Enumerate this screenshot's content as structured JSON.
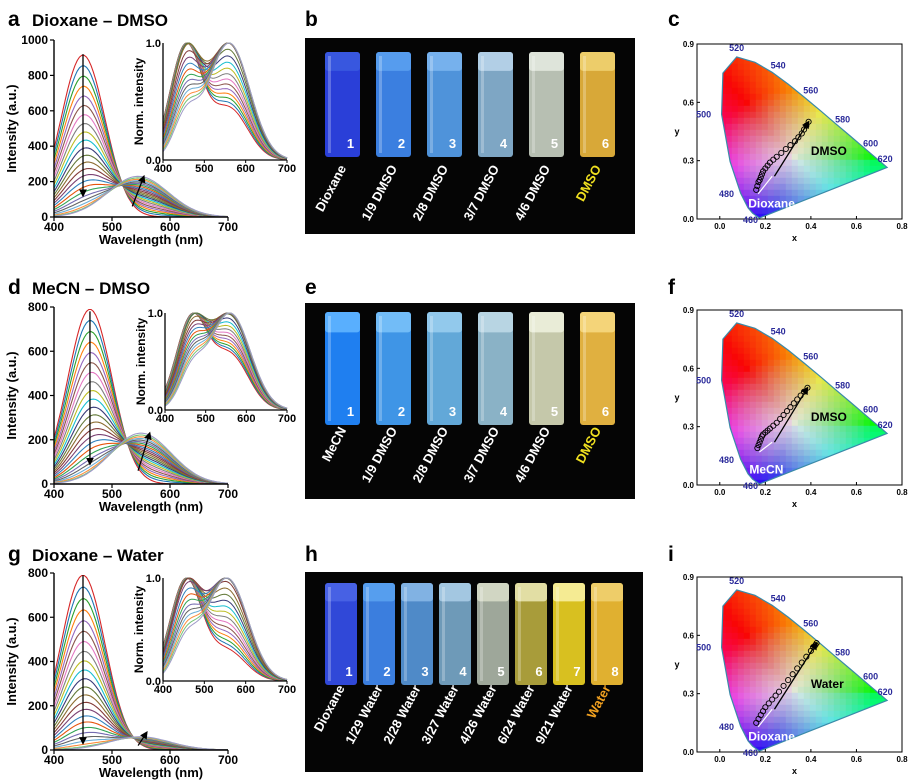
{
  "colors": {
    "vial_bg": "#050505",
    "label_white": "#ffffff",
    "label_dmso": "#f0e020",
    "label_water": "#f0a020",
    "locus_outline": "#3a8aa8",
    "wavelength_label": "#2a2a9a",
    "path_arrow": "#000000",
    "start_arrow": "#ffffff"
  },
  "chart_data": [
    {
      "id": "a",
      "type": "line",
      "panel_label": "a",
      "title": "Dioxane – DMSO",
      "xlabel": "Wavelength (nm)",
      "ylabel": "Intensity (a.u.)",
      "xlim": [
        400,
        700
      ],
      "ylim": [
        0,
        1000
      ],
      "xticks": [
        400,
        500,
        600,
        700
      ],
      "yticks": [
        0,
        200,
        400,
        600,
        800,
        1000
      ],
      "start": {
        "peak_x": 450,
        "peak_y": 915
      },
      "end": {
        "peak_x": 545,
        "peak_y": 230
      },
      "n_curves": 24,
      "arrow_down": {
        "x": 450,
        "from": 920,
        "to": 120
      },
      "arrow_up": {
        "from_x": 535,
        "from_y": 60,
        "to_x": 555,
        "to_y": 230
      },
      "inset": {
        "xlabel": "",
        "ylabel": "Norm. intensity",
        "xlim": [
          400,
          700
        ],
        "ylim": [
          0,
          1
        ],
        "xticks": [
          400,
          500,
          600,
          700
        ],
        "yticks": [
          "0.0",
          "1.0"
        ],
        "start_peak": 455,
        "end_peak": 560,
        "shoulder": 0.45
      }
    },
    {
      "id": "d",
      "type": "line",
      "panel_label": "d",
      "title": "MeCN – DMSO",
      "xlabel": "Wavelength (nm)",
      "ylabel": "Intensity (a.u.)",
      "xlim": [
        400,
        700
      ],
      "ylim": [
        0,
        800
      ],
      "xticks": [
        400,
        500,
        600,
        700
      ],
      "yticks": [
        0,
        200,
        400,
        600,
        800
      ],
      "start": {
        "peak_x": 462,
        "peak_y": 790
      },
      "end": {
        "peak_x": 550,
        "peak_y": 230
      },
      "n_curves": 24,
      "arrow_down": {
        "x": 462,
        "from": 780,
        "to": 90
      },
      "arrow_up": {
        "from_x": 545,
        "from_y": 60,
        "to_x": 565,
        "to_y": 230
      },
      "inset": {
        "xlabel": "",
        "ylabel": "Norm. intensity",
        "xlim": [
          400,
          700
        ],
        "ylim": [
          0,
          1
        ],
        "xticks": [
          400,
          500,
          600,
          700
        ],
        "yticks": [
          "0.0",
          "1.0"
        ],
        "start_peak": 465,
        "end_peak": 560,
        "shoulder": 0.6
      }
    },
    {
      "id": "g",
      "type": "line",
      "panel_label": "g",
      "title": "Dioxane – Water",
      "xlabel": "Wavelength (nm)",
      "ylabel": "Intensity (a.u.)",
      "xlim": [
        400,
        700
      ],
      "ylim": [
        0,
        800
      ],
      "xticks": [
        400,
        500,
        600,
        700
      ],
      "yticks": [
        0,
        200,
        400,
        600,
        800
      ],
      "start": {
        "peak_x": 450,
        "peak_y": 790
      },
      "end": {
        "peak_x": 548,
        "peak_y": 60
      },
      "n_curves": 24,
      "arrow_down": {
        "x": 450,
        "from": 790,
        "to": 30
      },
      "arrow_up": {
        "from_x": 545,
        "from_y": 20,
        "to_x": 560,
        "to_y": 80
      },
      "inset": {
        "xlabel": "",
        "ylabel": "Norm. intensity",
        "xlim": [
          400,
          700
        ],
        "ylim": [
          0,
          1
        ],
        "xticks": [
          400,
          500,
          600,
          700
        ],
        "yticks": [
          "0.0",
          "1.0"
        ],
        "start_peak": 455,
        "end_peak": 555,
        "shoulder": 0.3
      }
    },
    {
      "id": "c",
      "type": "scatter",
      "panel_label": "c",
      "xlabel": "x",
      "ylabel": "y",
      "xlim": [
        -0.1,
        0.8
      ],
      "ylim": [
        0.0,
        0.9
      ],
      "xticks": [
        "0.0",
        "0.2",
        "0.4",
        "0.6",
        "0.8"
      ],
      "yticks": [
        "0.0",
        "0.3",
        "0.6",
        "0.9"
      ],
      "wavelength_labels": [
        "460",
        "480",
        "500",
        "520",
        "540",
        "560",
        "580",
        "600",
        "620"
      ],
      "start_label": "Dioxane",
      "end_label": "DMSO",
      "points_x": [
        0.16,
        0.165,
        0.17,
        0.175,
        0.18,
        0.185,
        0.19,
        0.2,
        0.21,
        0.22,
        0.235,
        0.25,
        0.27,
        0.29,
        0.31,
        0.33,
        0.345,
        0.36,
        0.37,
        0.38,
        0.39
      ],
      "points_y": [
        0.15,
        0.17,
        0.19,
        0.2,
        0.215,
        0.23,
        0.245,
        0.26,
        0.275,
        0.29,
        0.305,
        0.32,
        0.34,
        0.36,
        0.38,
        0.4,
        0.42,
        0.44,
        0.46,
        0.48,
        0.5
      ]
    },
    {
      "id": "f",
      "type": "scatter",
      "panel_label": "f",
      "xlabel": "x",
      "ylabel": "y",
      "xlim": [
        -0.1,
        0.8
      ],
      "ylim": [
        0.0,
        0.9
      ],
      "xticks": [
        "0.0",
        "0.2",
        "0.4",
        "0.6",
        "0.8"
      ],
      "yticks": [
        "0.0",
        "0.3",
        "0.6",
        "0.9"
      ],
      "wavelength_labels": [
        "460",
        "480",
        "500",
        "520",
        "540",
        "560",
        "580",
        "600",
        "620"
      ],
      "start_label": "MeCN",
      "end_label": "DMSO",
      "points_x": [
        0.165,
        0.17,
        0.175,
        0.18,
        0.185,
        0.19,
        0.2,
        0.21,
        0.22,
        0.235,
        0.25,
        0.265,
        0.28,
        0.295,
        0.31,
        0.325,
        0.34,
        0.355,
        0.37,
        0.385
      ],
      "points_y": [
        0.19,
        0.205,
        0.22,
        0.235,
        0.25,
        0.26,
        0.27,
        0.28,
        0.29,
        0.305,
        0.32,
        0.34,
        0.36,
        0.38,
        0.4,
        0.42,
        0.44,
        0.46,
        0.48,
        0.5
      ]
    },
    {
      "id": "i",
      "type": "scatter",
      "panel_label": "i",
      "xlabel": "x",
      "ylabel": "y",
      "xlim": [
        -0.1,
        0.8
      ],
      "ylim": [
        0.0,
        0.9
      ],
      "xticks": [
        "0.0",
        "0.2",
        "0.4",
        "0.6",
        "0.8"
      ],
      "yticks": [
        "0.0",
        "0.3",
        "0.6",
        "0.9"
      ],
      "wavelength_labels": [
        "460",
        "480",
        "500",
        "520",
        "540",
        "560",
        "580",
        "600",
        "620"
      ],
      "start_label": "Dioxane",
      "end_label": "Water",
      "points_x": [
        0.16,
        0.17,
        0.18,
        0.19,
        0.2,
        0.215,
        0.23,
        0.245,
        0.26,
        0.28,
        0.3,
        0.32,
        0.34,
        0.36,
        0.38,
        0.4,
        0.41,
        0.42,
        0.425
      ],
      "points_y": [
        0.15,
        0.17,
        0.19,
        0.21,
        0.23,
        0.25,
        0.27,
        0.29,
        0.31,
        0.34,
        0.37,
        0.4,
        0.43,
        0.46,
        0.49,
        0.52,
        0.54,
        0.55,
        0.56
      ]
    },
    {
      "id": "b",
      "type": "table",
      "panel_label": "b",
      "vials": [
        {
          "num": "1",
          "label": "Dioxane",
          "color": "#2a3fd8",
          "top": "#3a5ae0",
          "label_color": "#ffffff"
        },
        {
          "num": "2",
          "label": "1/9 DMSO",
          "color": "#3b7fe0",
          "top": "#5aa0f0",
          "label_color": "#ffffff"
        },
        {
          "num": "3",
          "label": "2/8 DMSO",
          "color": "#4f93da",
          "top": "#7ab5ee",
          "label_color": "#ffffff"
        },
        {
          "num": "4",
          "label": "3/7 DMSO",
          "color": "#7ea6c4",
          "top": "#b8d4ea",
          "label_color": "#ffffff"
        },
        {
          "num": "5",
          "label": "4/6 DMSO",
          "color": "#b7bfb2",
          "top": "#e2e8de",
          "label_color": "#ffffff"
        },
        {
          "num": "6",
          "label": "DMSO",
          "color": "#d8a838",
          "top": "#f0d070",
          "label_color": "#f0e020"
        }
      ]
    },
    {
      "id": "e",
      "type": "table",
      "panel_label": "e",
      "vials": [
        {
          "num": "1",
          "label": "MeCN",
          "color": "#1f7ff0",
          "top": "#5fb5ff",
          "label_color": "#ffffff"
        },
        {
          "num": "2",
          "label": "1/9 DMSO",
          "color": "#3f95e6",
          "top": "#78c0f8",
          "label_color": "#ffffff"
        },
        {
          "num": "3",
          "label": "2/8 DMSO",
          "color": "#62a8d8",
          "top": "#98ccee",
          "label_color": "#ffffff"
        },
        {
          "num": "4",
          "label": "3/7 DMSO",
          "color": "#8ab2c6",
          "top": "#bcd8e6",
          "label_color": "#ffffff"
        },
        {
          "num": "5",
          "label": "4/6 DMSO",
          "color": "#c5c8aa",
          "top": "#ecefdc",
          "label_color": "#ffffff"
        },
        {
          "num": "6",
          "label": "DMSO",
          "color": "#e0b040",
          "top": "#f6d880",
          "label_color": "#f0e020"
        }
      ]
    },
    {
      "id": "h",
      "type": "table",
      "panel_label": "h",
      "vials": [
        {
          "num": "1",
          "label": "Dioxane",
          "color": "#3048d8",
          "top": "#4a64e6",
          "label_color": "#ffffff"
        },
        {
          "num": "2",
          "label": "1/29 Water",
          "color": "#3b7ede",
          "top": "#5aa2f0",
          "label_color": "#ffffff"
        },
        {
          "num": "3",
          "label": "2/28 Water",
          "color": "#4f8ac8",
          "top": "#86b6e6",
          "label_color": "#ffffff"
        },
        {
          "num": "4",
          "label": "3/27 Water",
          "color": "#6e9ab8",
          "top": "#a8cce6",
          "label_color": "#ffffff"
        },
        {
          "num": "5",
          "label": "4/26 Water",
          "color": "#9ea79a",
          "top": "#d6dcc8",
          "label_color": "#ffffff"
        },
        {
          "num": "6",
          "label": "6/24 Water",
          "color": "#a89c3a",
          "top": "#e8e6b0",
          "label_color": "#ffffff"
        },
        {
          "num": "7",
          "label": "9/21 Water",
          "color": "#d8c020",
          "top": "#f8f0a0",
          "label_color": "#ffffff"
        },
        {
          "num": "8",
          "label": "Water",
          "color": "#e0b030",
          "top": "#f0d070",
          "label_color": "#f0a020"
        }
      ]
    }
  ]
}
